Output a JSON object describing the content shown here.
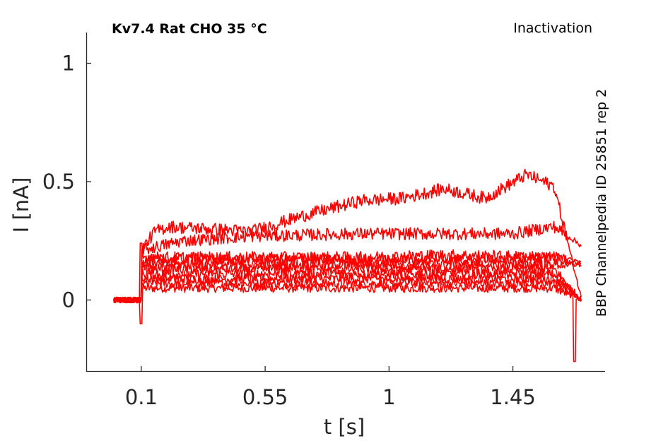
{
  "chart_data": {
    "type": "line",
    "title_left": "Kv7.4  Rat  CHO  35 °C",
    "title_right": "Inactivation",
    "side_label": "BBP Channelpedia ID 25851 rep 2",
    "xlabel": "t [s]",
    "ylabel": "I [nA]",
    "xlim": [
      -0.1,
      1.785
    ],
    "ylim": [
      -0.3,
      1.13
    ],
    "xticks": [
      0.1,
      0.55,
      1,
      1.45
    ],
    "xtick_labels": [
      "0.1",
      "0.55",
      "1",
      "1.45"
    ],
    "yticks": [
      0,
      0.5,
      1
    ],
    "ytick_labels": [
      "0",
      "0.5",
      "1"
    ],
    "color": "#ff0000",
    "grid": false,
    "series": [
      {
        "x": [
          0.0,
          0.1,
          0.5,
          0.9,
          1.2,
          1.6,
          1.7
        ],
        "y": [
          0.0,
          0.05,
          0.05,
          0.05,
          0.05,
          0.05,
          0.0
        ]
      },
      {
        "x": [
          0.0,
          0.1,
          0.5,
          0.9,
          1.2,
          1.6,
          1.7
        ],
        "y": [
          0.0,
          0.07,
          0.07,
          0.07,
          0.07,
          0.07,
          0.0
        ]
      },
      {
        "x": [
          0.0,
          0.1,
          0.5,
          0.9,
          1.2,
          1.6,
          1.7
        ],
        "y": [
          0.0,
          0.09,
          0.09,
          0.09,
          0.09,
          0.09,
          0.0
        ]
      },
      {
        "x": [
          0.0,
          0.1,
          0.5,
          0.9,
          1.2,
          1.6,
          1.7
        ],
        "y": [
          0.0,
          0.11,
          0.11,
          0.11,
          0.11,
          0.11,
          0.0
        ]
      },
      {
        "x": [
          0.0,
          0.1,
          0.5,
          0.9,
          1.2,
          1.6,
          1.7
        ],
        "y": [
          0.0,
          0.13,
          0.13,
          0.13,
          0.13,
          0.13,
          0.0
        ]
      },
      {
        "x": [
          0.0,
          0.1,
          0.5,
          0.9,
          1.2,
          1.6,
          1.7
        ],
        "y": [
          0.0,
          0.15,
          0.15,
          0.15,
          0.15,
          0.15,
          0.15
        ]
      },
      {
        "x": [
          0.0,
          0.1,
          0.5,
          0.9,
          1.2,
          1.6,
          1.7
        ],
        "y": [
          0.0,
          0.17,
          0.17,
          0.17,
          0.17,
          0.18,
          0.16
        ]
      },
      {
        "x": [
          0.0,
          0.1,
          0.5,
          0.9,
          1.2,
          1.6,
          1.7
        ],
        "y": [
          0.0,
          0.18,
          0.18,
          0.18,
          0.19,
          0.18,
          0.15
        ]
      },
      {
        "x": [
          0.0,
          0.1,
          0.25,
          0.5,
          0.9,
          1.2,
          1.45,
          1.6,
          1.7
        ],
        "y": [
          0.0,
          0.21,
          0.25,
          0.27,
          0.28,
          0.28,
          0.28,
          0.31,
          0.23
        ]
      },
      {
        "x": [
          0.0,
          0.1,
          0.15,
          0.2,
          0.5,
          0.7,
          0.9,
          1.05,
          1.2,
          1.35,
          1.5,
          1.6,
          1.7
        ],
        "y": [
          0.0,
          0.21,
          0.29,
          0.31,
          0.29,
          0.36,
          0.42,
          0.43,
          0.47,
          0.43,
          0.53,
          0.48,
          0.0
        ]
      }
    ]
  }
}
